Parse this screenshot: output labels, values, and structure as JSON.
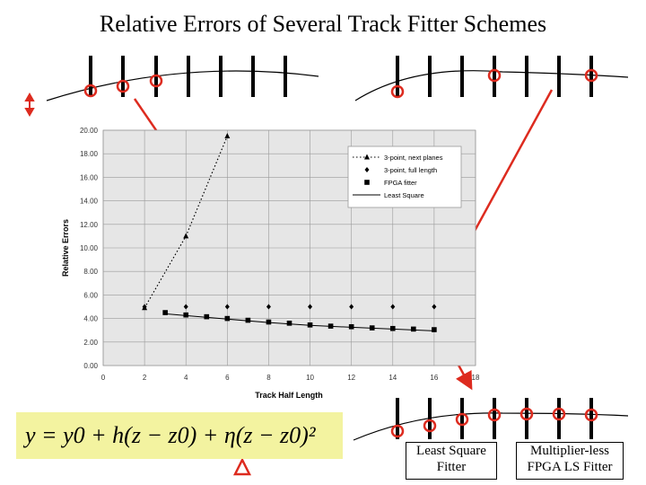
{
  "slide": {
    "title": "Relative Errors of Several Track Fitter Schemes",
    "formula": "y = y0 + h(z − z0) + η(z − z0)²",
    "label_ls": [
      "Least Square",
      "Fitter"
    ],
    "label_mlls": [
      "Multiplier-less",
      "FPGA LS Fitter"
    ]
  },
  "colors": {
    "accent": "#dd2b1f",
    "plot_bg": "#e6e6e6",
    "formula_bg": "#f3f3a0"
  },
  "chart_data": {
    "type": "line",
    "xlabel": "Track Half Length",
    "ylabel": "Relative Errors",
    "xlim": [
      0,
      18
    ],
    "ylim": [
      0,
      20
    ],
    "xticks": [
      0,
      2,
      4,
      6,
      8,
      10,
      12,
      14,
      16,
      18
    ],
    "yticks": [
      "0.00",
      "2.00",
      "4.00",
      "6.00",
      "8.00",
      "10.00",
      "12.00",
      "14.00",
      "16.00",
      "18.00",
      "20.00"
    ],
    "grid": true,
    "legend_position": "top-right",
    "series": [
      {
        "name": "3-point, next planes",
        "marker": "triangle",
        "line": "dotted",
        "x": [
          2,
          4,
          6
        ],
        "y": [
          4.9,
          11.0,
          19.5
        ]
      },
      {
        "name": "3-point, full length",
        "marker": "diamond",
        "line": "none",
        "x": [
          2,
          4,
          6,
          8,
          10,
          12,
          14,
          16
        ],
        "y": [
          5.0,
          5.0,
          5.0,
          5.0,
          5.0,
          5.0,
          5.0,
          5.0
        ]
      },
      {
        "name": "FPGA fitter",
        "marker": "square",
        "line": "none",
        "x": [
          3,
          4,
          5,
          6,
          7,
          8,
          9,
          10,
          11,
          12,
          13,
          14,
          15,
          16
        ],
        "y": [
          4.5,
          4.3,
          4.15,
          4.0,
          3.85,
          3.7,
          3.6,
          3.45,
          3.35,
          3.3,
          3.2,
          3.15,
          3.1,
          3.05
        ]
      },
      {
        "name": "Least Square",
        "marker": "none",
        "line": "solid",
        "x": [
          3,
          4,
          6,
          8,
          10,
          12,
          14,
          16
        ],
        "y": [
          4.4,
          4.25,
          3.95,
          3.65,
          3.42,
          3.25,
          3.1,
          2.95
        ]
      }
    ]
  }
}
